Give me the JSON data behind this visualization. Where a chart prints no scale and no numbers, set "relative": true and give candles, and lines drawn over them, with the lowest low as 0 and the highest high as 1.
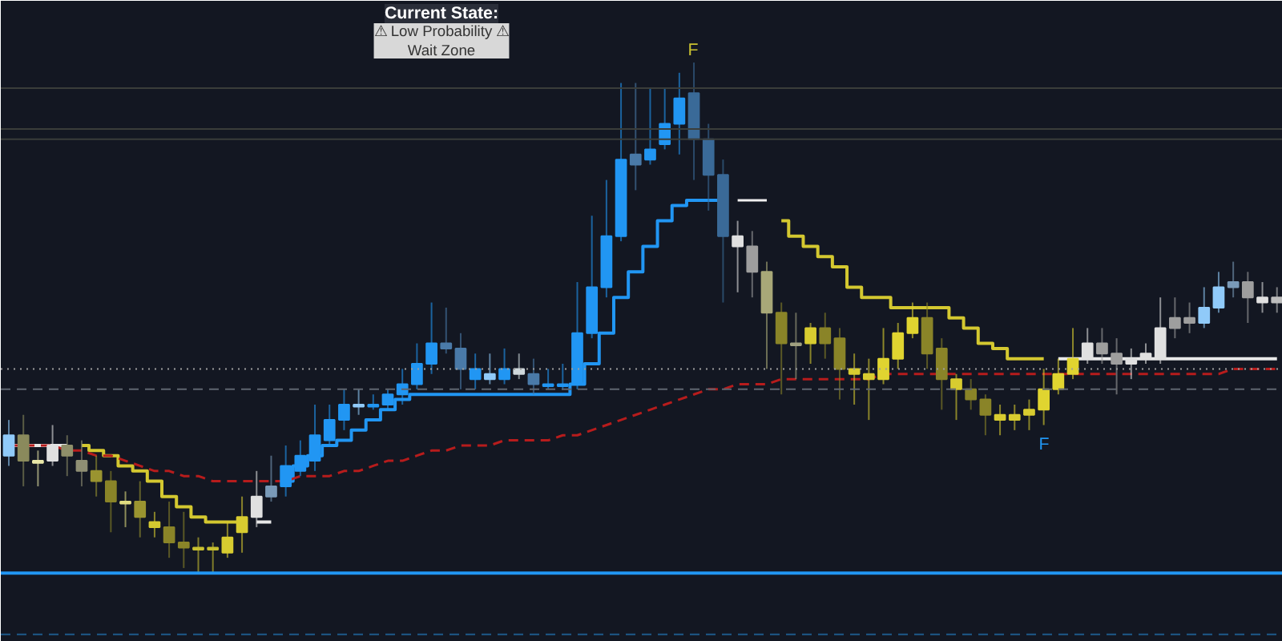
{
  "chart_data": {
    "type": "candlestick",
    "relative": true,
    "categories": [
      null,
      null,
      null,
      null,
      null,
      null,
      null,
      null,
      null,
      null,
      null,
      null,
      null,
      null,
      null,
      null,
      null,
      null,
      null,
      null,
      null,
      null,
      null,
      null,
      null,
      null,
      null,
      null,
      null,
      null,
      null,
      null,
      null,
      null,
      null,
      null,
      null,
      null,
      null,
      null,
      null,
      null,
      null,
      null,
      null,
      null,
      null,
      null,
      null,
      null,
      null,
      null,
      null,
      null,
      null,
      null,
      null,
      null,
      null,
      null,
      null,
      null,
      null,
      null,
      null,
      null,
      null,
      null,
      null,
      null,
      null,
      null,
      null,
      null,
      null,
      null,
      null,
      null,
      null,
      null,
      null,
      null,
      null,
      null,
      null,
      null,
      null,
      null
    ],
    "ohlc": [
      [
        0.23,
        0.3,
        0.21,
        0.27
      ],
      [
        0.27,
        0.31,
        0.17,
        0.22
      ],
      [
        0.22,
        0.24,
        0.17,
        0.22
      ],
      [
        0.22,
        0.29,
        0.21,
        0.25
      ],
      [
        0.25,
        0.27,
        0.19,
        0.23
      ],
      [
        0.22,
        0.26,
        0.17,
        0.2
      ],
      [
        0.2,
        0.23,
        0.15,
        0.18
      ],
      [
        0.18,
        0.2,
        0.08,
        0.14
      ],
      [
        0.14,
        0.16,
        0.09,
        0.14
      ],
      [
        0.14,
        0.18,
        0.07,
        0.11
      ],
      [
        0.1,
        0.12,
        0.07,
        0.09
      ],
      [
        0.09,
        0.14,
        0.03,
        0.06
      ],
      [
        0.06,
        0.12,
        0.01,
        0.05
      ],
      [
        0.05,
        0.07,
        0.0,
        0.05
      ],
      [
        0.05,
        0.06,
        0.0,
        0.05
      ],
      [
        0.04,
        0.1,
        0.03,
        0.07
      ],
      [
        0.08,
        0.15,
        0.04,
        0.11
      ],
      [
        0.11,
        0.2,
        0.09,
        0.15
      ],
      [
        0.15,
        0.23,
        0.14,
        0.17
      ],
      [
        0.17,
        0.25,
        0.15,
        0.21
      ],
      [
        0.2,
        0.26,
        0.19,
        0.23
      ],
      [
        0.22,
        0.33,
        0.2,
        0.27
      ],
      [
        0.26,
        0.33,
        0.25,
        0.3
      ],
      [
        0.3,
        0.36,
        0.28,
        0.33
      ],
      [
        0.33,
        0.36,
        0.31,
        0.33
      ],
      [
        0.33,
        0.35,
        0.32,
        0.33
      ],
      [
        0.33,
        0.36,
        0.32,
        0.35
      ],
      [
        0.35,
        0.4,
        0.33,
        0.37
      ],
      [
        0.37,
        0.45,
        0.36,
        0.41
      ],
      [
        0.41,
        0.53,
        0.39,
        0.45
      ],
      [
        0.45,
        0.52,
        0.43,
        0.44
      ],
      [
        0.44,
        0.47,
        0.36,
        0.4
      ],
      [
        0.38,
        0.43,
        0.36,
        0.4
      ],
      [
        0.38,
        0.43,
        0.37,
        0.39
      ],
      [
        0.38,
        0.44,
        0.37,
        0.4
      ],
      [
        0.39,
        0.43,
        0.38,
        0.4
      ],
      [
        0.39,
        0.42,
        0.35,
        0.37
      ],
      [
        0.37,
        0.4,
        0.36,
        0.37
      ],
      [
        0.37,
        0.41,
        0.36,
        0.37
      ],
      [
        0.37,
        0.57,
        0.36,
        0.47
      ],
      [
        0.47,
        0.7,
        0.46,
        0.56
      ],
      [
        0.56,
        0.77,
        0.54,
        0.66
      ],
      [
        0.66,
        0.96,
        0.65,
        0.81
      ],
      [
        0.82,
        0.96,
        0.75,
        0.8
      ],
      [
        0.81,
        0.95,
        0.8,
        0.83
      ],
      [
        0.84,
        0.95,
        0.83,
        0.88
      ],
      [
        0.88,
        0.98,
        0.82,
        0.93
      ],
      [
        0.94,
        1.0,
        0.77,
        0.85
      ],
      [
        0.85,
        0.88,
        0.71,
        0.78
      ],
      [
        0.78,
        0.81,
        0.53,
        0.66
      ],
      [
        0.64,
        0.69,
        0.55,
        0.66
      ],
      [
        0.64,
        0.67,
        0.54,
        0.59
      ],
      [
        0.59,
        0.61,
        0.4,
        0.51
      ],
      [
        0.51,
        0.53,
        0.35,
        0.45
      ],
      [
        0.45,
        0.51,
        0.38,
        0.45
      ],
      [
        0.45,
        0.49,
        0.41,
        0.48
      ],
      [
        0.48,
        0.51,
        0.42,
        0.45
      ],
      [
        0.46,
        0.48,
        0.34,
        0.4
      ],
      [
        0.4,
        0.43,
        0.33,
        0.39
      ],
      [
        0.39,
        0.42,
        0.3,
        0.38
      ],
      [
        0.38,
        0.48,
        0.37,
        0.42
      ],
      [
        0.42,
        0.49,
        0.4,
        0.47
      ],
      [
        0.47,
        0.53,
        0.46,
        0.5
      ],
      [
        0.5,
        0.53,
        0.4,
        0.43
      ],
      [
        0.44,
        0.46,
        0.32,
        0.38
      ],
      [
        0.38,
        0.39,
        0.3,
        0.36
      ],
      [
        0.36,
        0.38,
        0.32,
        0.34
      ],
      [
        0.34,
        0.35,
        0.27,
        0.31
      ],
      [
        0.31,
        0.33,
        0.27,
        0.3
      ],
      [
        0.3,
        0.33,
        0.28,
        0.31
      ],
      [
        0.31,
        0.34,
        0.28,
        0.32
      ],
      [
        0.32,
        0.4,
        0.29,
        0.36
      ],
      [
        0.36,
        0.42,
        0.35,
        0.39
      ],
      [
        0.39,
        0.48,
        0.38,
        0.42
      ],
      [
        0.42,
        0.48,
        0.41,
        0.45
      ],
      [
        0.45,
        0.48,
        0.41,
        0.43
      ],
      [
        0.43,
        0.46,
        0.35,
        0.41
      ],
      [
        0.41,
        0.44,
        0.38,
        0.42
      ],
      [
        0.42,
        0.45,
        0.41,
        0.43
      ],
      [
        0.42,
        0.54,
        0.41,
        0.48
      ],
      [
        0.5,
        0.54,
        0.46,
        0.48
      ],
      [
        0.49,
        0.53,
        0.47,
        0.5
      ],
      [
        0.49,
        0.56,
        0.48,
        0.52
      ],
      [
        0.52,
        0.59,
        0.51,
        0.56
      ],
      [
        0.56,
        0.61,
        0.54,
        0.57
      ],
      [
        0.57,
        0.59,
        0.49,
        0.54
      ],
      [
        0.53,
        0.57,
        0.51,
        0.54
      ],
      [
        0.54,
        0.56,
        0.51,
        0.53
      ]
    ],
    "colors": [
      "#90caf9",
      "#8a8a5c",
      "#e8e6a8",
      "#e0e0e0",
      "#8f8f6a",
      "#8f8f74",
      "#9a9430",
      "#8a8428",
      "#e0dc80",
      "#9a9430",
      "#d4c830",
      "#8a8428",
      "#8a8428",
      "#c8c030",
      "#c8c030",
      "#d8cc30",
      "#d8cc30",
      "#e0e0e0",
      "#7a9ab8",
      "#2196f3",
      "#2196f3",
      "#2196f3",
      "#2196f3",
      "#2196f3",
      "#90caf9",
      "#2196f3",
      "#2196f3",
      "#2196f3",
      "#2196f3",
      "#2196f3",
      "#4a7aa8",
      "#4a7aa8",
      "#2196f3",
      "#90caf9",
      "#2196f3",
      "#cfd8dc",
      "#4a7aa8",
      "#2196f3",
      "#2196f3",
      "#2196f3",
      "#2196f3",
      "#2196f3",
      "#2196f3",
      "#4a7aa8",
      "#2196f3",
      "#2196f3",
      "#2196f3",
      "#3a6a98",
      "#3a6a98",
      "#3a6a98",
      "#e0e0e0",
      "#9e9e9e",
      "#a8a878",
      "#8a8428",
      "#a0a080",
      "#d8cc30",
      "#8a8428",
      "#8a8428",
      "#d8cc30",
      "#d8cc30",
      "#e0d430",
      "#e0d430",
      "#e0d430",
      "#8a8428",
      "#8a8428",
      "#d8cc30",
      "#8a8428",
      "#8a8428",
      "#d8cc30",
      "#d8cc30",
      "#d8cc30",
      "#e0d430",
      "#e0d430",
      "#e0d430",
      "#e0e0e0",
      "#9e9e9e",
      "#9e9e9e",
      "#e0e0e0",
      "#e0e0e0",
      "#e0e0e0",
      "#9e9e9e",
      "#9e9e9e",
      "#90caf9",
      "#90caf9",
      "#7a9ab8",
      "#9e9e9e",
      "#e0e0e0",
      "#bdbdbd"
    ],
    "series": [
      {
        "type": "line",
        "color": "#f0f0f0",
        "values": [
          null,
          null,
          null,
          null,
          null,
          null,
          null,
          null,
          null,
          null,
          null,
          null,
          null,
          null,
          null,
          null,
          null,
          null,
          null,
          null,
          null,
          null,
          null,
          null,
          null,
          null,
          null,
          null,
          null,
          null,
          null,
          null,
          null,
          null,
          null,
          null,
          null,
          null,
          null,
          null,
          null,
          null,
          null,
          null,
          null,
          null,
          null,
          null,
          null,
          null,
          0.73,
          0.73,
          0.73,
          null,
          null,
          null,
          null,
          null,
          null,
          null,
          null,
          null,
          null,
          null,
          null,
          null,
          null,
          null,
          null,
          null,
          null,
          null,
          null,
          null,
          null,
          null,
          null,
          null,
          null,
          null,
          null,
          null,
          null,
          null,
          null,
          null,
          null,
          null
        ]
      },
      {
        "type": "step",
        "color": "#e8e8e8",
        "values": [
          0.25,
          0.25,
          0.25,
          0.25,
          0.25,
          null,
          null,
          null,
          null,
          null,
          null,
          null,
          null,
          null,
          null,
          null,
          null,
          0.1,
          0.1,
          null,
          null,
          null,
          null,
          null,
          null,
          null,
          null,
          null,
          null,
          null,
          null,
          null,
          null,
          null,
          null,
          null,
          null,
          null,
          null,
          null,
          null,
          null,
          null,
          null,
          null,
          null,
          null,
          null,
          null,
          null,
          null,
          null,
          null,
          null,
          null,
          null,
          null,
          null,
          null,
          null,
          null,
          null,
          null,
          null,
          null,
          null,
          null,
          null,
          null,
          null,
          null,
          null,
          0.42,
          0.42,
          0.42,
          0.42,
          0.42,
          0.42,
          0.42,
          0.42,
          0.42,
          0.42,
          0.42,
          0.42,
          0.42,
          0.42,
          0.42,
          0.42
        ]
      },
      {
        "type": "step",
        "color": "#d4c830",
        "values": [
          null,
          null,
          null,
          null,
          null,
          0.25,
          0.24,
          0.23,
          0.21,
          0.2,
          0.18,
          0.15,
          0.13,
          0.11,
          0.1,
          0.1,
          0.1,
          null,
          null,
          null,
          null,
          null,
          null,
          null,
          null,
          null,
          null,
          null,
          null,
          null,
          null,
          null,
          null,
          null,
          null,
          null,
          null,
          null,
          null,
          null,
          null,
          null,
          null,
          null,
          null,
          null,
          null,
          null,
          null,
          null,
          null,
          null,
          null,
          0.69,
          0.66,
          0.64,
          0.62,
          0.6,
          0.56,
          0.54,
          0.54,
          0.52,
          0.52,
          0.52,
          0.52,
          0.5,
          0.48,
          0.45,
          0.44,
          0.42,
          0.42,
          0.42,
          null,
          null,
          null,
          null,
          null,
          null,
          null,
          null,
          null,
          null,
          null,
          null,
          null,
          null,
          null,
          null
        ]
      },
      {
        "type": "step",
        "color": "#2196f3",
        "values": [
          null,
          null,
          null,
          null,
          null,
          null,
          null,
          null,
          null,
          null,
          null,
          null,
          null,
          null,
          null,
          null,
          null,
          null,
          null,
          0.18,
          0.21,
          0.23,
          0.25,
          0.26,
          0.28,
          0.3,
          0.32,
          0.34,
          0.35,
          0.35,
          0.35,
          0.35,
          0.35,
          0.35,
          0.35,
          0.35,
          0.35,
          0.35,
          0.35,
          0.37,
          0.41,
          0.47,
          0.54,
          0.59,
          0.64,
          0.69,
          0.72,
          0.73,
          0.73,
          0.73,
          null,
          null,
          null,
          null,
          null,
          null,
          null,
          null,
          null,
          null,
          null,
          null,
          null,
          null,
          null,
          null,
          null,
          null,
          null,
          null,
          null,
          null,
          null,
          null,
          null,
          null,
          null,
          null,
          null,
          null,
          null,
          null,
          null,
          null,
          null,
          null,
          null,
          null
        ]
      },
      {
        "type": "line",
        "color": "#b71c1c",
        "line_style": "dashed",
        "values": [
          0.25,
          0.25,
          0.25,
          0.25,
          0.24,
          0.24,
          0.23,
          0.23,
          0.22,
          0.21,
          0.2,
          0.2,
          0.19,
          0.19,
          0.18,
          0.18,
          0.18,
          0.18,
          0.18,
          0.18,
          0.19,
          0.19,
          0.19,
          0.2,
          0.2,
          0.21,
          0.22,
          0.22,
          0.23,
          0.24,
          0.24,
          0.25,
          0.25,
          0.25,
          0.26,
          0.26,
          0.26,
          0.26,
          0.27,
          0.27,
          0.28,
          0.29,
          0.3,
          0.31,
          0.32,
          0.33,
          0.34,
          0.35,
          0.36,
          0.36,
          0.37,
          0.37,
          0.37,
          0.38,
          0.38,
          0.38,
          0.38,
          0.38,
          0.38,
          0.38,
          0.39,
          0.39,
          0.39,
          0.39,
          0.39,
          0.39,
          0.39,
          0.39,
          0.39,
          0.39,
          0.39,
          0.39,
          0.39,
          0.39,
          0.39,
          0.39,
          0.39,
          0.39,
          0.39,
          0.39,
          0.39,
          0.39,
          0.39,
          0.39,
          0.4,
          0.4,
          0.4,
          0.4
        ]
      }
    ],
    "ref_lines": [
      {
        "axis": "y",
        "value": 0.95,
        "color": "#3a3d3a",
        "line_style": "solid"
      },
      {
        "axis": "y",
        "value": 0.87,
        "color": "#3a3d3a",
        "line_style": "solid"
      },
      {
        "axis": "y",
        "value": 0.85,
        "color": "#3a3d3a",
        "line_style": "solid"
      },
      {
        "axis": "y",
        "value": 0.4,
        "color": "#9e9e9e",
        "line_style": "dotted"
      },
      {
        "axis": "y",
        "value": 0.36,
        "color": "#5f6670",
        "line_style": "dashed"
      },
      {
        "axis": "y",
        "value": 0.0,
        "color": "#2196f3",
        "line_style": "solid"
      },
      {
        "axis": "y",
        "value": -0.12,
        "color": "#1e5a8a",
        "line_style": "dashed"
      }
    ],
    "annotations": [
      "Current State:",
      "⚠ Low Probability ⚠\nWait Zone",
      "F",
      "F"
    ]
  }
}
